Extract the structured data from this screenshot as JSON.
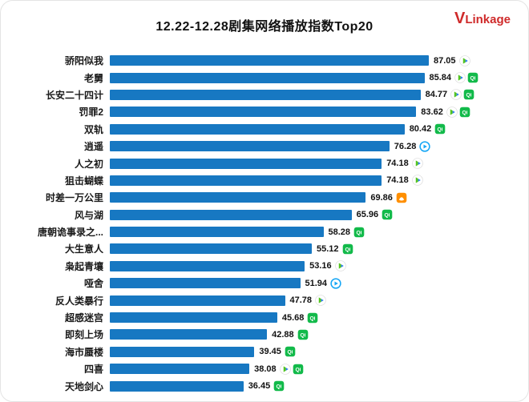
{
  "header": {
    "title": "12.22-12.28剧集网络播放指数Top20",
    "logo": "VLinkage"
  },
  "chart_data": {
    "type": "bar",
    "orientation": "horizontal",
    "title": "12.22-12.28剧集网络播放指数Top20",
    "xlim": [
      0,
      90
    ],
    "grid": false,
    "legend": false,
    "bar_color": "#1778c2",
    "categories": [
      "骄阳似我",
      "老舅",
      "长安二十四计",
      "罚罪2",
      "双轨",
      "逍遥",
      "人之初",
      "狙击蝴蝶",
      "时差一万公里",
      "风与湖",
      "唐朝诡事录之...",
      "大生意人",
      "枭起青壤",
      "哑舍",
      "反人类暴行",
      "超感迷宫",
      "即刻上场",
      "海市蜃楼",
      "四喜",
      "天地剑心"
    ],
    "values": [
      87.05,
      85.84,
      84.77,
      83.62,
      80.42,
      76.28,
      74.18,
      74.18,
      69.86,
      65.96,
      58.28,
      55.12,
      53.16,
      51.94,
      47.78,
      45.68,
      42.88,
      39.45,
      38.08,
      36.45
    ],
    "platforms": [
      [
        "tencent-video"
      ],
      [
        "tencent-video",
        "iqiyi"
      ],
      [
        "tencent-video",
        "iqiyi"
      ],
      [
        "tencent-video",
        "iqiyi"
      ],
      [
        "iqiyi"
      ],
      [
        "youku"
      ],
      [
        "tencent-video"
      ],
      [
        "tencent-video"
      ],
      [
        "mango-tv"
      ],
      [
        "iqiyi"
      ],
      [
        "iqiyi"
      ],
      [
        "iqiyi"
      ],
      [
        "tencent-video"
      ],
      [
        "youku"
      ],
      [
        "tencent-video"
      ],
      [
        "iqiyi"
      ],
      [
        "iqiyi"
      ],
      [
        "iqiyi"
      ],
      [
        "tencent-video",
        "iqiyi"
      ],
      [
        "iqiyi"
      ]
    ]
  }
}
